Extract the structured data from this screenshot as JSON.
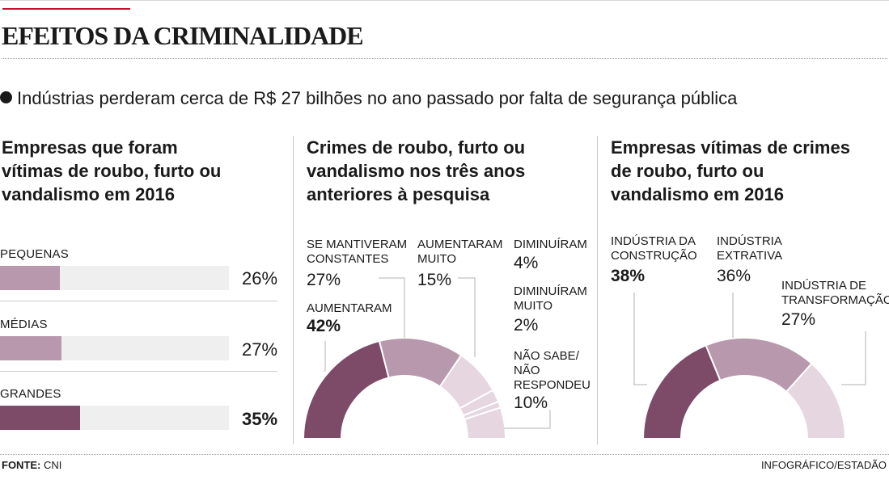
{
  "title": "EFEITOS DA CRIMINALIDADE",
  "subtitle": "Indústrias perderam cerca de R$ 27 bilhões no ano passado por falta de segurança pública",
  "footer": {
    "source_label": "FONTE:",
    "source": "CNI",
    "credit": "INFOGRÁFICO/ESTADÃO"
  },
  "chart_data": [
    {
      "type": "bar",
      "title": "Empresas que foram vítimas de roubo, furto ou vandalismo em 2016",
      "title_lines": [
        "Empresas que foram",
        "vítimas de roubo, furto ou",
        "vandalismo em 2016"
      ],
      "categories": [
        "PEQUENAS",
        "MÉDIAS",
        "GRANDES"
      ],
      "values": [
        26,
        27,
        35
      ],
      "value_labels": [
        "26%",
        "27%",
        "35%"
      ],
      "colors": [
        "#b898ad",
        "#b898ad",
        "#7d4a68"
      ],
      "ylim": [
        0,
        100
      ]
    },
    {
      "type": "pie",
      "subtype": "semicircle-donut",
      "title": "Crimes de roubo, furto ou vandalismo nos três anos anteriores à pesquisa",
      "title_lines": [
        "Crimes de roubo, furto ou",
        "vandalismo nos três anos",
        "anteriores à pesquisa"
      ],
      "slices": [
        {
          "label_lines": [
            "AUMENTARAM"
          ],
          "value": 42,
          "value_label": "42%",
          "color": "#7d4a68"
        },
        {
          "label_lines": [
            "SE MANTIVERAM",
            "CONSTANTES"
          ],
          "value": 27,
          "value_label": "27%",
          "color": "#b898ad"
        },
        {
          "label_lines": [
            "AUMENTARAM",
            "MUITO"
          ],
          "value": 15,
          "value_label": "15%",
          "color": "#e5d6e0"
        },
        {
          "label_lines": [
            "DIMINUÍRAM"
          ],
          "value": 4,
          "value_label": "4%",
          "color": "#e5d6e0"
        },
        {
          "label_lines": [
            "DIMINUÍRAM",
            "MUITO"
          ],
          "value": 2,
          "value_label": "2%",
          "color": "#e5d6e0"
        },
        {
          "label_lines": [
            "NÃO SABE/",
            "NÃO",
            "RESPONDEU"
          ],
          "value": 10,
          "value_label": "10%",
          "color": "#e5d6e0"
        }
      ]
    },
    {
      "type": "pie",
      "subtype": "semicircle-donut",
      "title": "Empresas vítimas de crimes de roubo, furto ou vandalismo em 2016",
      "title_lines": [
        "Empresas vítimas de crimes",
        "de roubo, furto ou",
        "vandalismo em 2016"
      ],
      "slices": [
        {
          "label_lines": [
            "INDÚSTRIA DA",
            "CONSTRUÇÃO"
          ],
          "value": 38,
          "value_label": "38%",
          "color": "#7d4a68"
        },
        {
          "label_lines": [
            "INDÚSTRIA",
            "EXTRATIVA"
          ],
          "value": 36,
          "value_label": "36%",
          "color": "#b898ad"
        },
        {
          "label_lines": [
            "INDÚSTRIA DE",
            "TRANSFORMAÇÃO"
          ],
          "value": 27,
          "value_label": "27%",
          "color": "#e5d6e0"
        }
      ]
    }
  ]
}
